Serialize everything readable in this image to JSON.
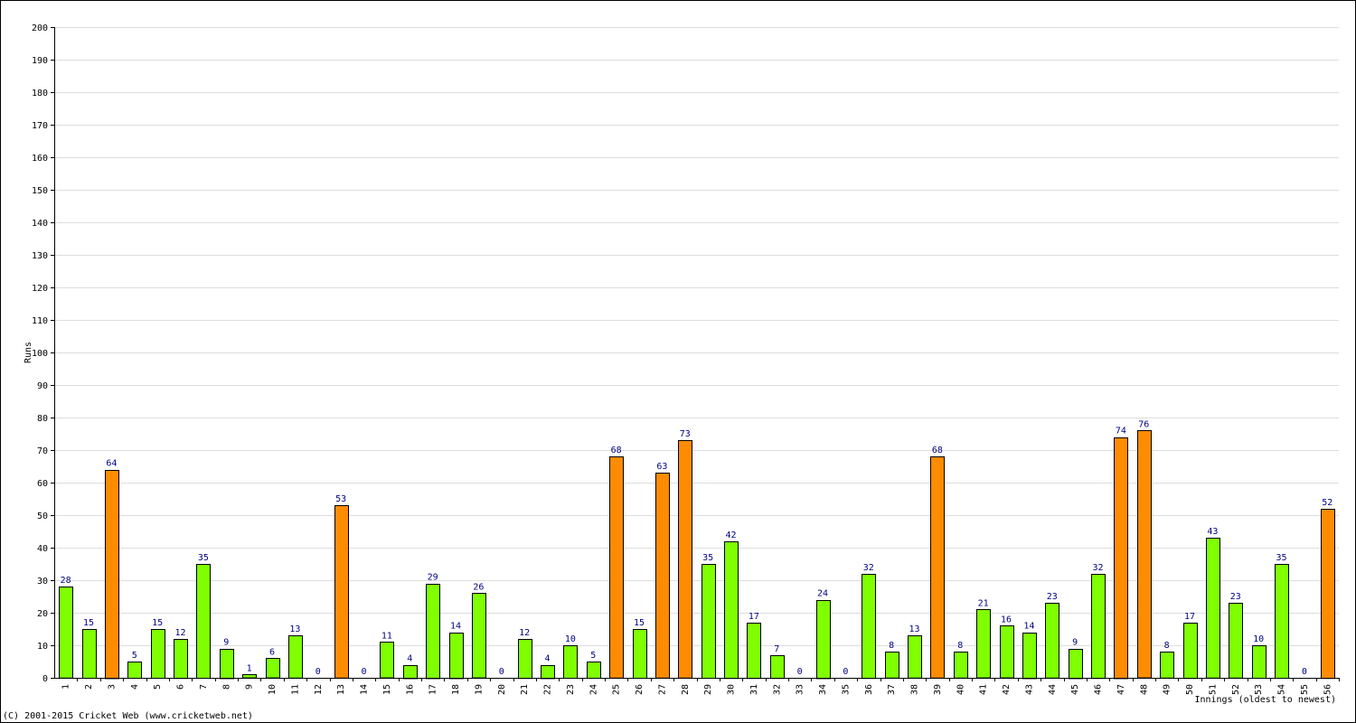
{
  "chart_data": {
    "type": "bar",
    "ylabel": "Runs",
    "xlabel": "Innings (oldest to newest)",
    "footer": "(C) 2001-2015 Cricket Web (www.cricketweb.net)",
    "categories": [
      1,
      2,
      3,
      4,
      5,
      6,
      7,
      8,
      9,
      10,
      11,
      12,
      13,
      14,
      15,
      16,
      17,
      18,
      19,
      20,
      21,
      22,
      23,
      24,
      25,
      26,
      27,
      28,
      29,
      30,
      31,
      32,
      33,
      34,
      35,
      36,
      37,
      38,
      39,
      40,
      41,
      42,
      43,
      44,
      45,
      46,
      47,
      48,
      49,
      50,
      51,
      52,
      53,
      54,
      55,
      56
    ],
    "values": [
      28,
      15,
      64,
      5,
      15,
      12,
      35,
      9,
      1,
      6,
      13,
      0,
      53,
      0,
      11,
      4,
      29,
      14,
      26,
      0,
      12,
      4,
      10,
      5,
      68,
      15,
      63,
      73,
      35,
      42,
      17,
      7,
      0,
      24,
      0,
      32,
      8,
      13,
      68,
      8,
      21,
      16,
      14,
      23,
      9,
      32,
      74,
      76,
      8,
      17,
      43,
      23,
      10,
      35,
      0,
      52
    ],
    "colors": [
      "#80ff00",
      "#80ff00",
      "#ff8c00",
      "#80ff00",
      "#80ff00",
      "#80ff00",
      "#80ff00",
      "#80ff00",
      "#80ff00",
      "#80ff00",
      "#80ff00",
      "#80ff00",
      "#ff8c00",
      "#80ff00",
      "#80ff00",
      "#80ff00",
      "#80ff00",
      "#80ff00",
      "#80ff00",
      "#80ff00",
      "#80ff00",
      "#80ff00",
      "#80ff00",
      "#80ff00",
      "#ff8c00",
      "#80ff00",
      "#ff8c00",
      "#ff8c00",
      "#80ff00",
      "#80ff00",
      "#80ff00",
      "#80ff00",
      "#80ff00",
      "#80ff00",
      "#80ff00",
      "#80ff00",
      "#80ff00",
      "#80ff00",
      "#ff8c00",
      "#80ff00",
      "#80ff00",
      "#80ff00",
      "#80ff00",
      "#80ff00",
      "#80ff00",
      "#80ff00",
      "#ff8c00",
      "#ff8c00",
      "#80ff00",
      "#80ff00",
      "#80ff00",
      "#80ff00",
      "#80ff00",
      "#80ff00",
      "#80ff00",
      "#ff8c00"
    ],
    "ylim": [
      0,
      200
    ],
    "yticks": [
      0,
      10,
      20,
      30,
      40,
      50,
      60,
      70,
      80,
      90,
      100,
      110,
      120,
      130,
      140,
      150,
      160,
      170,
      180,
      190,
      200
    ],
    "grid": true
  }
}
